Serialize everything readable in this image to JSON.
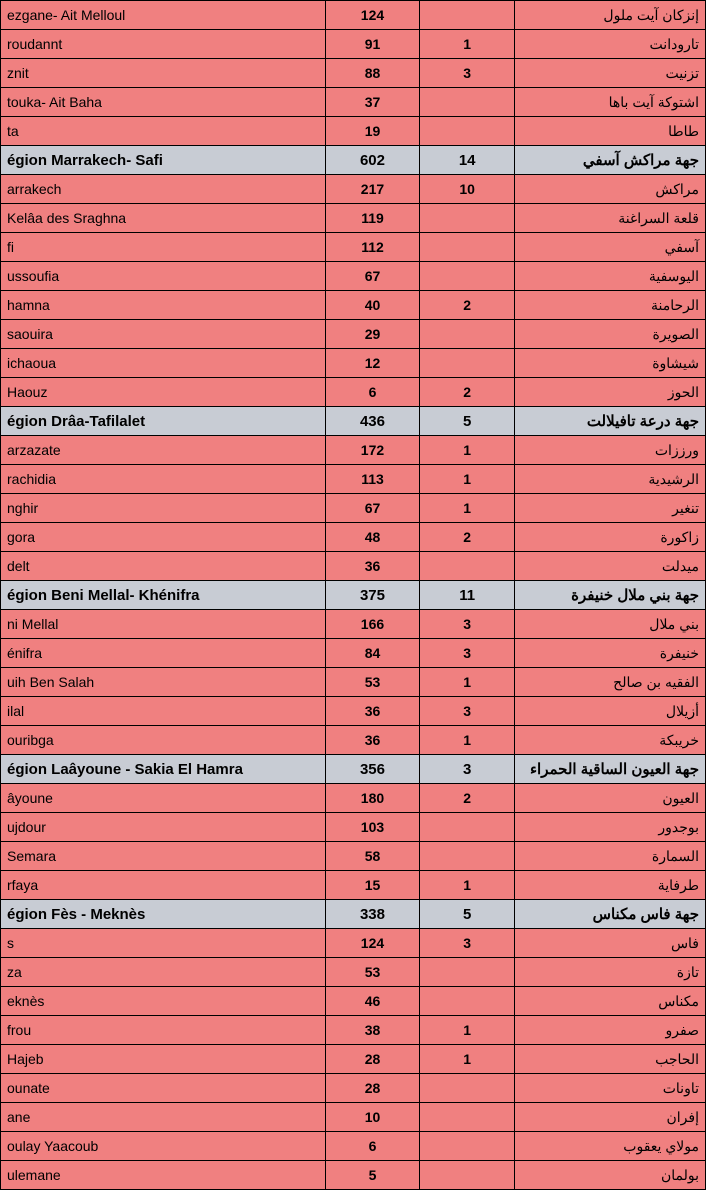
{
  "colors": {
    "region_bg": "#c8ccd4",
    "data_bg": "#f08080",
    "border": "#000000",
    "text": "#000000"
  },
  "typography": {
    "data_fontsize": 14,
    "region_fontsize": 15,
    "font_family": "Arial"
  },
  "columns": {
    "en_width": 325,
    "n1_width": 95,
    "n2_width": 95,
    "ar_width": 191
  },
  "rows": [
    {
      "type": "data",
      "en": "ezgane- Ait Melloul",
      "n1": "124",
      "n2": "",
      "ar": "إنزكان آيت ملول"
    },
    {
      "type": "data",
      "en": "roudannt",
      "n1": "91",
      "n2": "1",
      "ar": "تارودانت"
    },
    {
      "type": "data",
      "en": "znit",
      "n1": "88",
      "n2": "3",
      "ar": "تزنيت"
    },
    {
      "type": "data",
      "en": "touka- Ait Baha",
      "n1": "37",
      "n2": "",
      "ar": "اشتوكة آيت باها"
    },
    {
      "type": "data",
      "en": "ta",
      "n1": "19",
      "n2": "",
      "ar": "طاطا"
    },
    {
      "type": "region",
      "en": "égion Marrakech- Safi",
      "n1": "602",
      "n2": "14",
      "ar": "جهة مراكش آسفي"
    },
    {
      "type": "data",
      "en": "arrakech",
      "n1": "217",
      "n2": "10",
      "ar": "مراكش"
    },
    {
      "type": "data",
      "en": " Kelâa des  Sraghna",
      "n1": "119",
      "n2": "",
      "ar": "قلعة السراغنة"
    },
    {
      "type": "data",
      "en": "fi",
      "n1": "112",
      "n2": "",
      "ar": "آسفي"
    },
    {
      "type": "data",
      "en": "ussoufia",
      "n1": "67",
      "n2": "",
      "ar": "اليوسفية"
    },
    {
      "type": "data",
      "en": "hamna",
      "n1": "40",
      "n2": "2",
      "ar": "الرحامنة"
    },
    {
      "type": "data",
      "en": "saouira",
      "n1": "29",
      "n2": "",
      "ar": "الصويرة"
    },
    {
      "type": "data",
      "en": "ichaoua",
      "n1": "12",
      "n2": "",
      "ar": "شيشاوة"
    },
    {
      "type": "data",
      "en": " Haouz",
      "n1": "6",
      "n2": "2",
      "ar": "الحوز"
    },
    {
      "type": "region",
      "en": "égion Drâa-Tafilalet",
      "n1": "436",
      "n2": "5",
      "ar": "جهة درعة تافيلالت"
    },
    {
      "type": "data",
      "en": "arzazate",
      "n1": "172",
      "n2": "1",
      "ar": "ورززات"
    },
    {
      "type": "data",
      "en": "rachidia",
      "n1": "113",
      "n2": "1",
      "ar": "الرشيدية"
    },
    {
      "type": "data",
      "en": "nghir",
      "n1": "67",
      "n2": "1",
      "ar": "تنغير"
    },
    {
      "type": "data",
      "en": "gora",
      "n1": "48",
      "n2": "2",
      "ar": "زاكورة"
    },
    {
      "type": "data",
      "en": "delt",
      "n1": "36",
      "n2": "",
      "ar": "ميدلت"
    },
    {
      "type": "region",
      "en": "égion Beni Mellal- Khénifra",
      "n1": "375",
      "n2": "11",
      "ar": "جهة بني ملال خنيفرة"
    },
    {
      "type": "data",
      "en": "ni Mellal",
      "n1": "166",
      "n2": "3",
      "ar": "بني ملال"
    },
    {
      "type": "data",
      "en": "énifra",
      "n1": "84",
      "n2": "3",
      "ar": "خنيفرة"
    },
    {
      "type": "data",
      "en": "uih Ben Salah",
      "n1": "53",
      "n2": "1",
      "ar": "الفقيه بن صالح"
    },
    {
      "type": "data",
      "en": "ilal",
      "n1": "36",
      "n2": "3",
      "ar": "أزيلال"
    },
    {
      "type": "data",
      "en": "ouribga",
      "n1": "36",
      "n2": "1",
      "ar": "خريبكة"
    },
    {
      "type": "region",
      "en": "égion Laâyoune - Sakia El Hamra",
      "n1": "356",
      "n2": "3",
      "ar": "جهة العيون الساقية الحمراء"
    },
    {
      "type": "data",
      "en": "âyoune",
      "n1": "180",
      "n2": "2",
      "ar": "العيون"
    },
    {
      "type": "data",
      "en": "ujdour",
      "n1": "103",
      "n2": "",
      "ar": "بوجدور"
    },
    {
      "type": "data",
      "en": " Semara",
      "n1": "58",
      "n2": "",
      "ar": "السمارة"
    },
    {
      "type": "data",
      "en": "rfaya",
      "n1": "15",
      "n2": "1",
      "ar": "طرفاية"
    },
    {
      "type": "region",
      "en": "égion Fès - Meknès",
      "n1": "338",
      "n2": "5",
      "ar": "جهة فاس مكناس"
    },
    {
      "type": "data",
      "en": "s",
      "n1": "124",
      "n2": "3",
      "ar": "فاس"
    },
    {
      "type": "data",
      "en": "za",
      "n1": "53",
      "n2": "",
      "ar": "تازة"
    },
    {
      "type": "data",
      "en": "eknès",
      "n1": "46",
      "n2": "",
      "ar": "مكناس"
    },
    {
      "type": "data",
      "en": "frou",
      "n1": "38",
      "n2": "1",
      "ar": "صفرو"
    },
    {
      "type": "data",
      "en": " Hajeb",
      "n1": "28",
      "n2": "1",
      "ar": "الحاجب"
    },
    {
      "type": "data",
      "en": "ounate",
      "n1": "28",
      "n2": "",
      "ar": "تاونات"
    },
    {
      "type": "data",
      "en": "ane",
      "n1": "10",
      "n2": "",
      "ar": "إفران"
    },
    {
      "type": "data",
      "en": "oulay Yaacoub",
      "n1": "6",
      "n2": "",
      "ar": "مولاي يعقوب"
    },
    {
      "type": "data",
      "en": "ulemane",
      "n1": "5",
      "n2": "",
      "ar": "بولمان"
    }
  ]
}
